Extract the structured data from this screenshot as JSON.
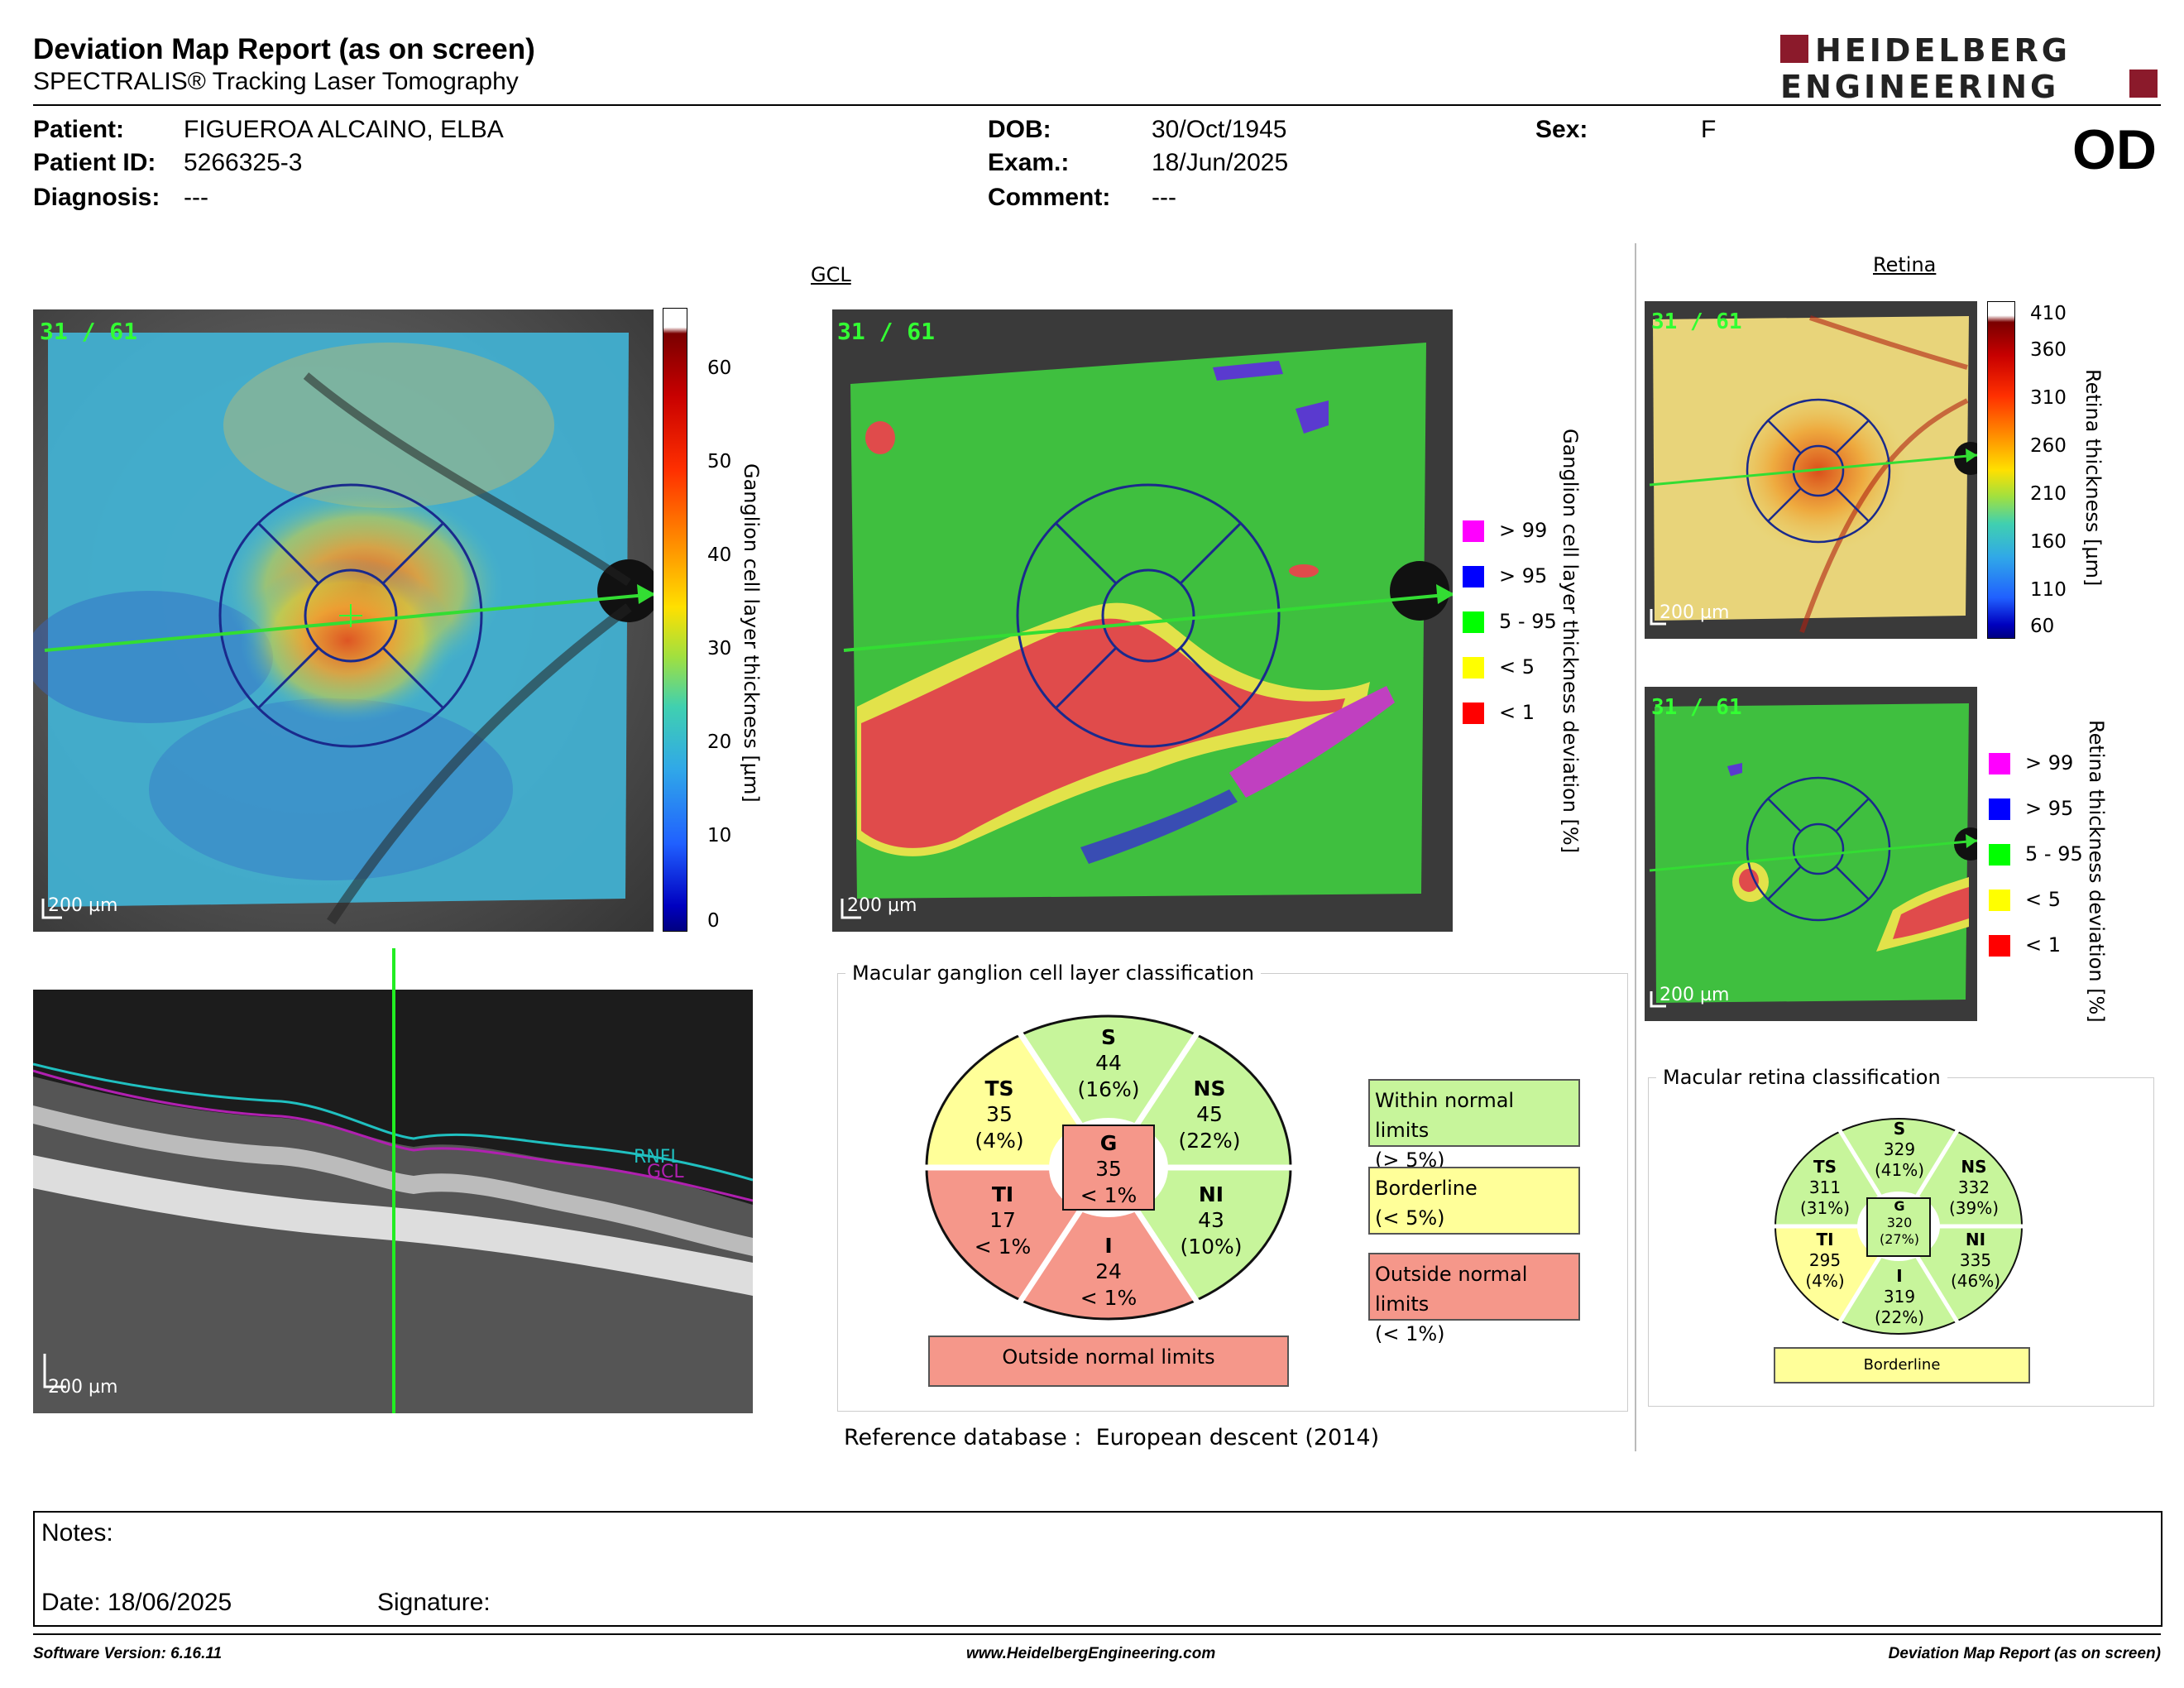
{
  "report": {
    "title": "Deviation Map Report (as on screen)",
    "subtitle": "SPECTRALIS® Tracking Laser Tomography",
    "logo": {
      "line1": "HEIDELBERG",
      "line2": "ENGINEERING",
      "color": "#8b1a2b"
    }
  },
  "patient": {
    "name_label": "Patient:",
    "name": "FIGUEROA ALCAINO, ELBA",
    "id_label": "Patient ID:",
    "id": "5266325-3",
    "diagnosis_label": "Diagnosis:",
    "diagnosis": "---",
    "dob_label": "DOB:",
    "dob": "30/Oct/1945",
    "exam_label": "Exam.:",
    "exam": "18/Jun/2025",
    "comment_label": "Comment:",
    "comment": "---",
    "sex_label": "Sex:",
    "sex": "F",
    "eye": "OD"
  },
  "gcl_panel": {
    "title": "GCL",
    "frame": "31 / 61",
    "scale": "200 µm",
    "thickness_axis_label": "Ganglion cell layer thickness [µm]",
    "thickness_ticks": [
      "60",
      "50",
      "40",
      "30",
      "20",
      "10",
      "0"
    ],
    "deviation_axis_label": "Ganglion cell layer thickness deviation [%]",
    "deviation_legend": [
      {
        "label": "> 99",
        "color": "#ff00ff"
      },
      {
        "label": "> 95",
        "color": "#0000ff"
      },
      {
        "label": "5 - 95",
        "color": "#00ff00"
      },
      {
        "label": "< 5",
        "color": "#ffff00"
      },
      {
        "label": "< 1",
        "color": "#ff0000"
      }
    ]
  },
  "retina_panel": {
    "title": "Retina",
    "frame": "31 / 61",
    "scale": "200 µm",
    "thickness_axis_label": "Retina thickness [µm]",
    "thickness_ticks": [
      "410",
      "360",
      "310",
      "260",
      "210",
      "160",
      "110",
      "60"
    ],
    "deviation_axis_label": "Retina thickness deviation [%]",
    "deviation_legend": [
      {
        "label": "> 99",
        "color": "#ff00ff"
      },
      {
        "label": "> 95",
        "color": "#0000ff"
      },
      {
        "label": "5 - 95",
        "color": "#00ff00"
      },
      {
        "label": "< 5",
        "color": "#ffff00"
      },
      {
        "label": "< 1",
        "color": "#ff0000"
      }
    ]
  },
  "bscan": {
    "scale": "200 µm",
    "layer1": "RNFL",
    "layer2": "GCL"
  },
  "gcl_classification": {
    "title": "Macular ganglion cell layer classification",
    "sectors": {
      "S": {
        "name": "S",
        "value": "44",
        "pct": "(16%)"
      },
      "TS": {
        "name": "TS",
        "value": "35",
        "pct": "(4%)"
      },
      "NS": {
        "name": "NS",
        "value": "45",
        "pct": "(22%)"
      },
      "G": {
        "name": "G",
        "value": "35",
        "pct": "< 1%"
      },
      "TI": {
        "name": "TI",
        "value": "17",
        "pct": "< 1%"
      },
      "NI": {
        "name": "NI",
        "value": "43",
        "pct": "(10%)"
      },
      "I": {
        "name": "I",
        "value": "24",
        "pct": "< 1%"
      }
    },
    "result": "Outside normal limits",
    "legend": [
      {
        "line1": "Within normal limits",
        "line2": "(> 5%)",
        "color": "#c7f59b"
      },
      {
        "line1": "Borderline",
        "line2": "(< 5%)",
        "color": "#ffff99"
      },
      {
        "line1": "Outside normal limits",
        "line2": "(< 1%)",
        "color": "#f5978a"
      }
    ],
    "colors": {
      "normal": "#c7f59b",
      "borderline": "#ffff99",
      "outside": "#f5978a"
    }
  },
  "retina_classification": {
    "title": "Macular retina classification",
    "sectors": {
      "S": {
        "name": "S",
        "value": "329",
        "pct": "(41%)"
      },
      "TS": {
        "name": "TS",
        "value": "311",
        "pct": "(31%)"
      },
      "NS": {
        "name": "NS",
        "value": "332",
        "pct": "(39%)"
      },
      "G": {
        "name": "G",
        "value": "320",
        "pct": "(27%)"
      },
      "TI": {
        "name": "TI",
        "value": "295",
        "pct": "(4%)"
      },
      "NI": {
        "name": "NI",
        "value": "335",
        "pct": "(46%)"
      },
      "I": {
        "name": "I",
        "value": "319",
        "pct": "(22%)"
      }
    },
    "result": "Borderline"
  },
  "reference": {
    "label": "Reference database :",
    "value": "European descent (2014)"
  },
  "notes": {
    "label": "Notes:",
    "date": "Date: 18/06/2025",
    "signature": "Signature:"
  },
  "footer": {
    "version": "Software Version: 6.16.11",
    "website": "www.HeidelbergEngineering.com",
    "report": "Deviation Map Report (as on screen)"
  }
}
